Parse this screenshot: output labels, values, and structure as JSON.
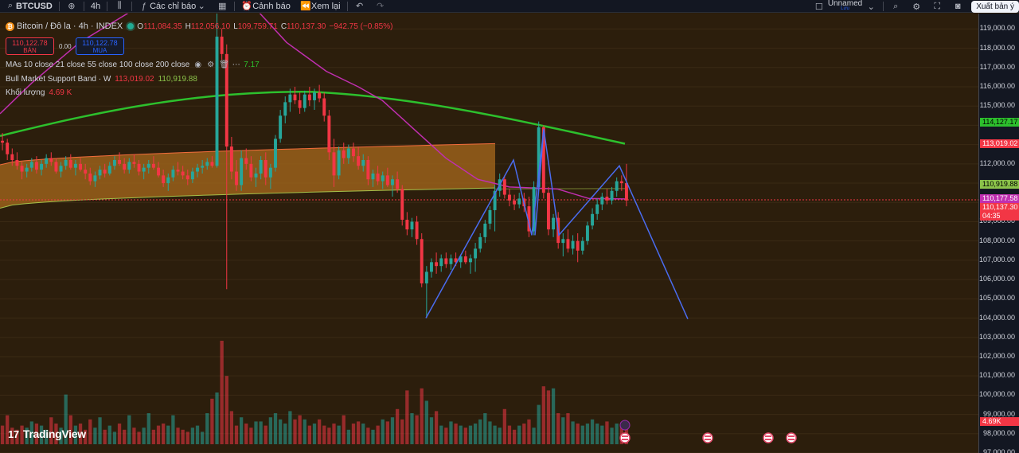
{
  "toolbar": {
    "symbol": "BTCUSD",
    "timeframe": "4h",
    "indicators_label": "Các chỉ báo",
    "alerts_label": "Cảnh báo",
    "replay_label": "Xem lại",
    "layout_name": "Unnamed",
    "layout_status": "Lưu",
    "export_label": "Xuất bản ý"
  },
  "legend": {
    "title": "Bitcoin / Đô la · 4h · INDEX",
    "open_label": "O",
    "open": "111,084.35",
    "high_label": "H",
    "high": "112,056.10",
    "low_label": "L",
    "low": "109,759.71",
    "close_label": "C",
    "close": "110,137.30",
    "change": "−942.75 (−0.85%)",
    "sell_price": "110,122.78",
    "sell_label": "BÁN",
    "buy_price": "110,122.78",
    "buy_label": "MUA",
    "spread": "0.00",
    "ma_label": "MAs 10 close 21 close 55 close 100 close 200 close",
    "ma_value": "7.17",
    "bmsb_label": "Bull Market Support Band · W",
    "bmsb_v1": "113,019.02",
    "bmsb_v2": "110,919.88",
    "volume_label": "Khối lượng",
    "volume_value": "4.69 K"
  },
  "price_axis": {
    "ticks": [
      "119,000.00",
      "118,000.00",
      "117,000.00",
      "116,000.00",
      "115,000.00",
      "112,000.00",
      "109,000.00",
      "108,000.00",
      "107,000.00",
      "106,000.00",
      "105,000.00",
      "104,000.00",
      "103,000.00",
      "102,000.00",
      "101,000.00",
      "100,000.00",
      "99,000.00",
      "98,000.00",
      "97,000.00"
    ],
    "badges": {
      "ma_green": "114,127.17",
      "bmsb_top": "113,019.02",
      "bmsb_bottom": "110,919.88",
      "ma_pink": "110,177.58",
      "last_price": "110,137.30",
      "countdown": "04:35",
      "volume": "4.69K"
    }
  },
  "branding": {
    "logo_text": "TradingView",
    "logo_mark": "17"
  },
  "colors": {
    "bull": "#26a69a",
    "bear": "#f23645",
    "ma_green": "#2dc02d",
    "ma_pink": "#c02fb0",
    "band_fill": "#a86a1c",
    "pattern": "#4a6cf0",
    "background": "#2c1e0c"
  },
  "chart_data": {
    "type": "candlestick",
    "ylim": [
      97000,
      119800
    ],
    "candles": [
      [
        113200,
        113600,
        112700,
        113100
      ],
      [
        113100,
        113300,
        112200,
        112500
      ],
      [
        112500,
        112800,
        111900,
        112200
      ],
      [
        112200,
        112600,
        111700,
        111900
      ],
      [
        111900,
        112100,
        111200,
        111600
      ],
      [
        111600,
        112000,
        111300,
        111800
      ],
      [
        111800,
        112300,
        111600,
        112100
      ],
      [
        112100,
        112400,
        111500,
        111700
      ],
      [
        111700,
        112200,
        111400,
        112000
      ],
      [
        112000,
        112500,
        111800,
        112300
      ],
      [
        112300,
        112600,
        111900,
        112100
      ],
      [
        112100,
        112300,
        111500,
        111600
      ],
      [
        111600,
        112100,
        111300,
        111900
      ],
      [
        111900,
        112400,
        111700,
        112200
      ],
      [
        112200,
        112500,
        111700,
        111800
      ],
      [
        111800,
        112200,
        111400,
        112000
      ],
      [
        112000,
        112300,
        111600,
        111700
      ],
      [
        111700,
        112000,
        111200,
        111500
      ],
      [
        111500,
        111800,
        110900,
        111100
      ],
      [
        111100,
        111600,
        110800,
        111400
      ],
      [
        111400,
        111900,
        111200,
        111700
      ],
      [
        111700,
        112000,
        111300,
        111500
      ],
      [
        111500,
        112100,
        111400,
        111900
      ],
      [
        111900,
        112400,
        111700,
        112200
      ],
      [
        112200,
        112600,
        111900,
        112000
      ],
      [
        112000,
        112300,
        111500,
        111700
      ],
      [
        111700,
        112300,
        111500,
        112100
      ],
      [
        112100,
        112500,
        111800,
        112000
      ],
      [
        112000,
        112200,
        111400,
        111600
      ],
      [
        111600,
        112000,
        111200,
        111800
      ],
      [
        111800,
        112200,
        111500,
        112000
      ],
      [
        112000,
        112400,
        111700,
        111800
      ],
      [
        111800,
        112100,
        111300,
        111400
      ],
      [
        111400,
        111700,
        110800,
        111000
      ],
      [
        111000,
        111500,
        110600,
        111300
      ],
      [
        111300,
        111900,
        111100,
        111700
      ],
      [
        111700,
        112100,
        111400,
        111600
      ],
      [
        111600,
        111900,
        111200,
        111400
      ],
      [
        111400,
        111700,
        110900,
        111200
      ],
      [
        111200,
        111800,
        111000,
        111600
      ],
      [
        111600,
        112000,
        111300,
        111800
      ],
      [
        111800,
        112200,
        111500,
        111900
      ],
      [
        111900,
        112300,
        111700,
        112100
      ],
      [
        112100,
        112400,
        111800,
        111900
      ],
      [
        111900,
        120200,
        111800,
        118600
      ],
      [
        118600,
        119000,
        117400,
        117700
      ],
      [
        117700,
        118200,
        105500,
        112900
      ],
      [
        112900,
        113400,
        111200,
        111600
      ],
      [
        111600,
        112200,
        110600,
        110900
      ],
      [
        110900,
        112700,
        110600,
        112300
      ],
      [
        112300,
        112800,
        111700,
        112000
      ],
      [
        112000,
        112400,
        111100,
        111300
      ],
      [
        111300,
        111800,
        110800,
        111500
      ],
      [
        111500,
        112400,
        111200,
        112200
      ],
      [
        112200,
        112600,
        110900,
        111300
      ],
      [
        111300,
        112000,
        110700,
        111800
      ],
      [
        111800,
        113500,
        111600,
        113300
      ],
      [
        113300,
        114800,
        113100,
        114500
      ],
      [
        114500,
        115500,
        114100,
        115200
      ],
      [
        115200,
        115900,
        114700,
        115600
      ],
      [
        115600,
        116000,
        115100,
        115300
      ],
      [
        115300,
        115700,
        114600,
        114900
      ],
      [
        114900,
        115800,
        114700,
        115600
      ],
      [
        115600,
        116000,
        115000,
        115300
      ],
      [
        115300,
        115900,
        114800,
        115700
      ],
      [
        115700,
        116100,
        115200,
        115400
      ],
      [
        115400,
        115700,
        114200,
        114500
      ],
      [
        114500,
        114800,
        112200,
        112600
      ],
      [
        112600,
        113300,
        110800,
        111400
      ],
      [
        111400,
        112900,
        111200,
        112700
      ],
      [
        112700,
        113100,
        112000,
        112300
      ],
      [
        112300,
        113000,
        112000,
        112800
      ],
      [
        112800,
        113100,
        112100,
        112400
      ],
      [
        112400,
        112900,
        111700,
        111900
      ],
      [
        111900,
        112500,
        111600,
        112200
      ],
      [
        112200,
        112400,
        110900,
        111200
      ],
      [
        111200,
        111700,
        110800,
        111500
      ],
      [
        111500,
        111900,
        110900,
        111100
      ],
      [
        111100,
        111600,
        110700,
        111400
      ],
      [
        111400,
        111800,
        110800,
        110900
      ],
      [
        110900,
        111400,
        110300,
        111200
      ],
      [
        111200,
        111600,
        110500,
        110700
      ],
      [
        110700,
        110900,
        108800,
        109100
      ],
      [
        109100,
        109500,
        108300,
        108600
      ],
      [
        108600,
        109200,
        108200,
        109000
      ],
      [
        109000,
        109300,
        107800,
        108100
      ],
      [
        108100,
        108400,
        105600,
        105800
      ],
      [
        105800,
        106700,
        104000,
        106400
      ],
      [
        106400,
        107100,
        106100,
        106900
      ],
      [
        106900,
        107400,
        106300,
        106700
      ],
      [
        106700,
        107300,
        106400,
        107100
      ],
      [
        107100,
        107400,
        106600,
        106800
      ],
      [
        106800,
        107300,
        106500,
        107100
      ],
      [
        107100,
        107400,
        106700,
        106900
      ],
      [
        106900,
        107300,
        106600,
        107200
      ],
      [
        107200,
        107500,
        106800,
        106900
      ],
      [
        106900,
        107300,
        106300,
        107100
      ],
      [
        107100,
        107900,
        106400,
        107600
      ],
      [
        107600,
        108400,
        107400,
        108200
      ],
      [
        108200,
        109100,
        107900,
        108900
      ],
      [
        108900,
        109800,
        108600,
        109600
      ],
      [
        109600,
        110900,
        108500,
        110600
      ],
      [
        110600,
        111500,
        110300,
        111200
      ],
      [
        111200,
        111400,
        110200,
        110400
      ],
      [
        110400,
        110700,
        109800,
        110100
      ],
      [
        110100,
        110400,
        109600,
        109900
      ],
      [
        109900,
        110500,
        109700,
        110200
      ],
      [
        110200,
        110500,
        109500,
        109800
      ],
      [
        109800,
        110300,
        108200,
        108500
      ],
      [
        108500,
        111100,
        108300,
        110800
      ],
      [
        110800,
        114200,
        110600,
        113900
      ],
      [
        113900,
        114000,
        110200,
        110500
      ],
      [
        110500,
        110800,
        108300,
        108600
      ],
      [
        108600,
        109400,
        108200,
        109200
      ],
      [
        109200,
        109500,
        107600,
        107900
      ],
      [
        107900,
        108400,
        107200,
        108100
      ],
      [
        108100,
        108600,
        107400,
        107600
      ],
      [
        107600,
        108300,
        107300,
        108000
      ],
      [
        108000,
        108400,
        106900,
        107500
      ],
      [
        107500,
        108200,
        107300,
        108000
      ],
      [
        108000,
        109000,
        107800,
        108800
      ],
      [
        108800,
        109700,
        108600,
        109400
      ],
      [
        109400,
        110200,
        109100,
        109900
      ],
      [
        109900,
        110500,
        109600,
        110300
      ],
      [
        110300,
        110700,
        109900,
        110100
      ],
      [
        110100,
        110800,
        109900,
        110600
      ],
      [
        110600,
        111300,
        110300,
        111100
      ],
      [
        111100,
        111400,
        110600,
        111000
      ],
      [
        111000,
        112000,
        109800,
        110100
      ]
    ],
    "volumes": [
      0.9,
      1.4,
      0.8,
      0.7,
      0.9,
      0.8,
      1.1,
      1.0,
      0.9,
      0.7,
      1.3,
      1.0,
      0.8,
      2.4,
      1.4,
      0.9,
      1.0,
      0.7,
      1.2,
      0.8,
      1.3,
      0.7,
      0.9,
      0.6,
      1.0,
      0.7,
      1.4,
      0.8,
      0.6,
      0.8,
      1.5,
      0.7,
      0.9,
      1.0,
      0.9,
      1.4,
      0.8,
      0.7,
      0.6,
      0.8,
      0.9,
      0.6,
      1.5,
      2.2,
      2.5,
      5.0,
      3.3,
      1.6,
      0.9,
      1.3,
      1.0,
      0.8,
      1.1,
      1.1,
      0.9,
      1.3,
      1.5,
      1.2,
      1.0,
      1.6,
      1.2,
      1.4,
      1.2,
      0.9,
      1.0,
      1.2,
      0.9,
      0.8,
      1.0,
      0.9,
      1.4,
      0.7,
      1.0,
      1.1,
      1.0,
      0.8,
      0.7,
      0.9,
      1.2,
      1.1,
      1.3,
      1.7,
      1.2,
      2.6,
      1.5,
      1.4,
      2.7,
      2.1,
      1.3,
      1.6,
      0.9,
      0.8,
      1.1,
      1.0,
      0.9,
      0.8,
      0.9,
      1.0,
      1.2,
      1.5,
      1.1,
      0.9,
      0.8,
      1.7,
      0.9,
      0.7,
      0.9,
      1.0,
      1.2,
      0.8,
      1.9,
      2.8,
      2.6,
      2.7,
      1.5,
      1.3,
      1.5,
      1.1,
      1.0,
      0.9,
      1.0,
      1.2,
      1.0,
      0.9,
      1.1,
      0.8,
      1.0,
      0.9,
      1.0,
      1.2
    ]
  }
}
